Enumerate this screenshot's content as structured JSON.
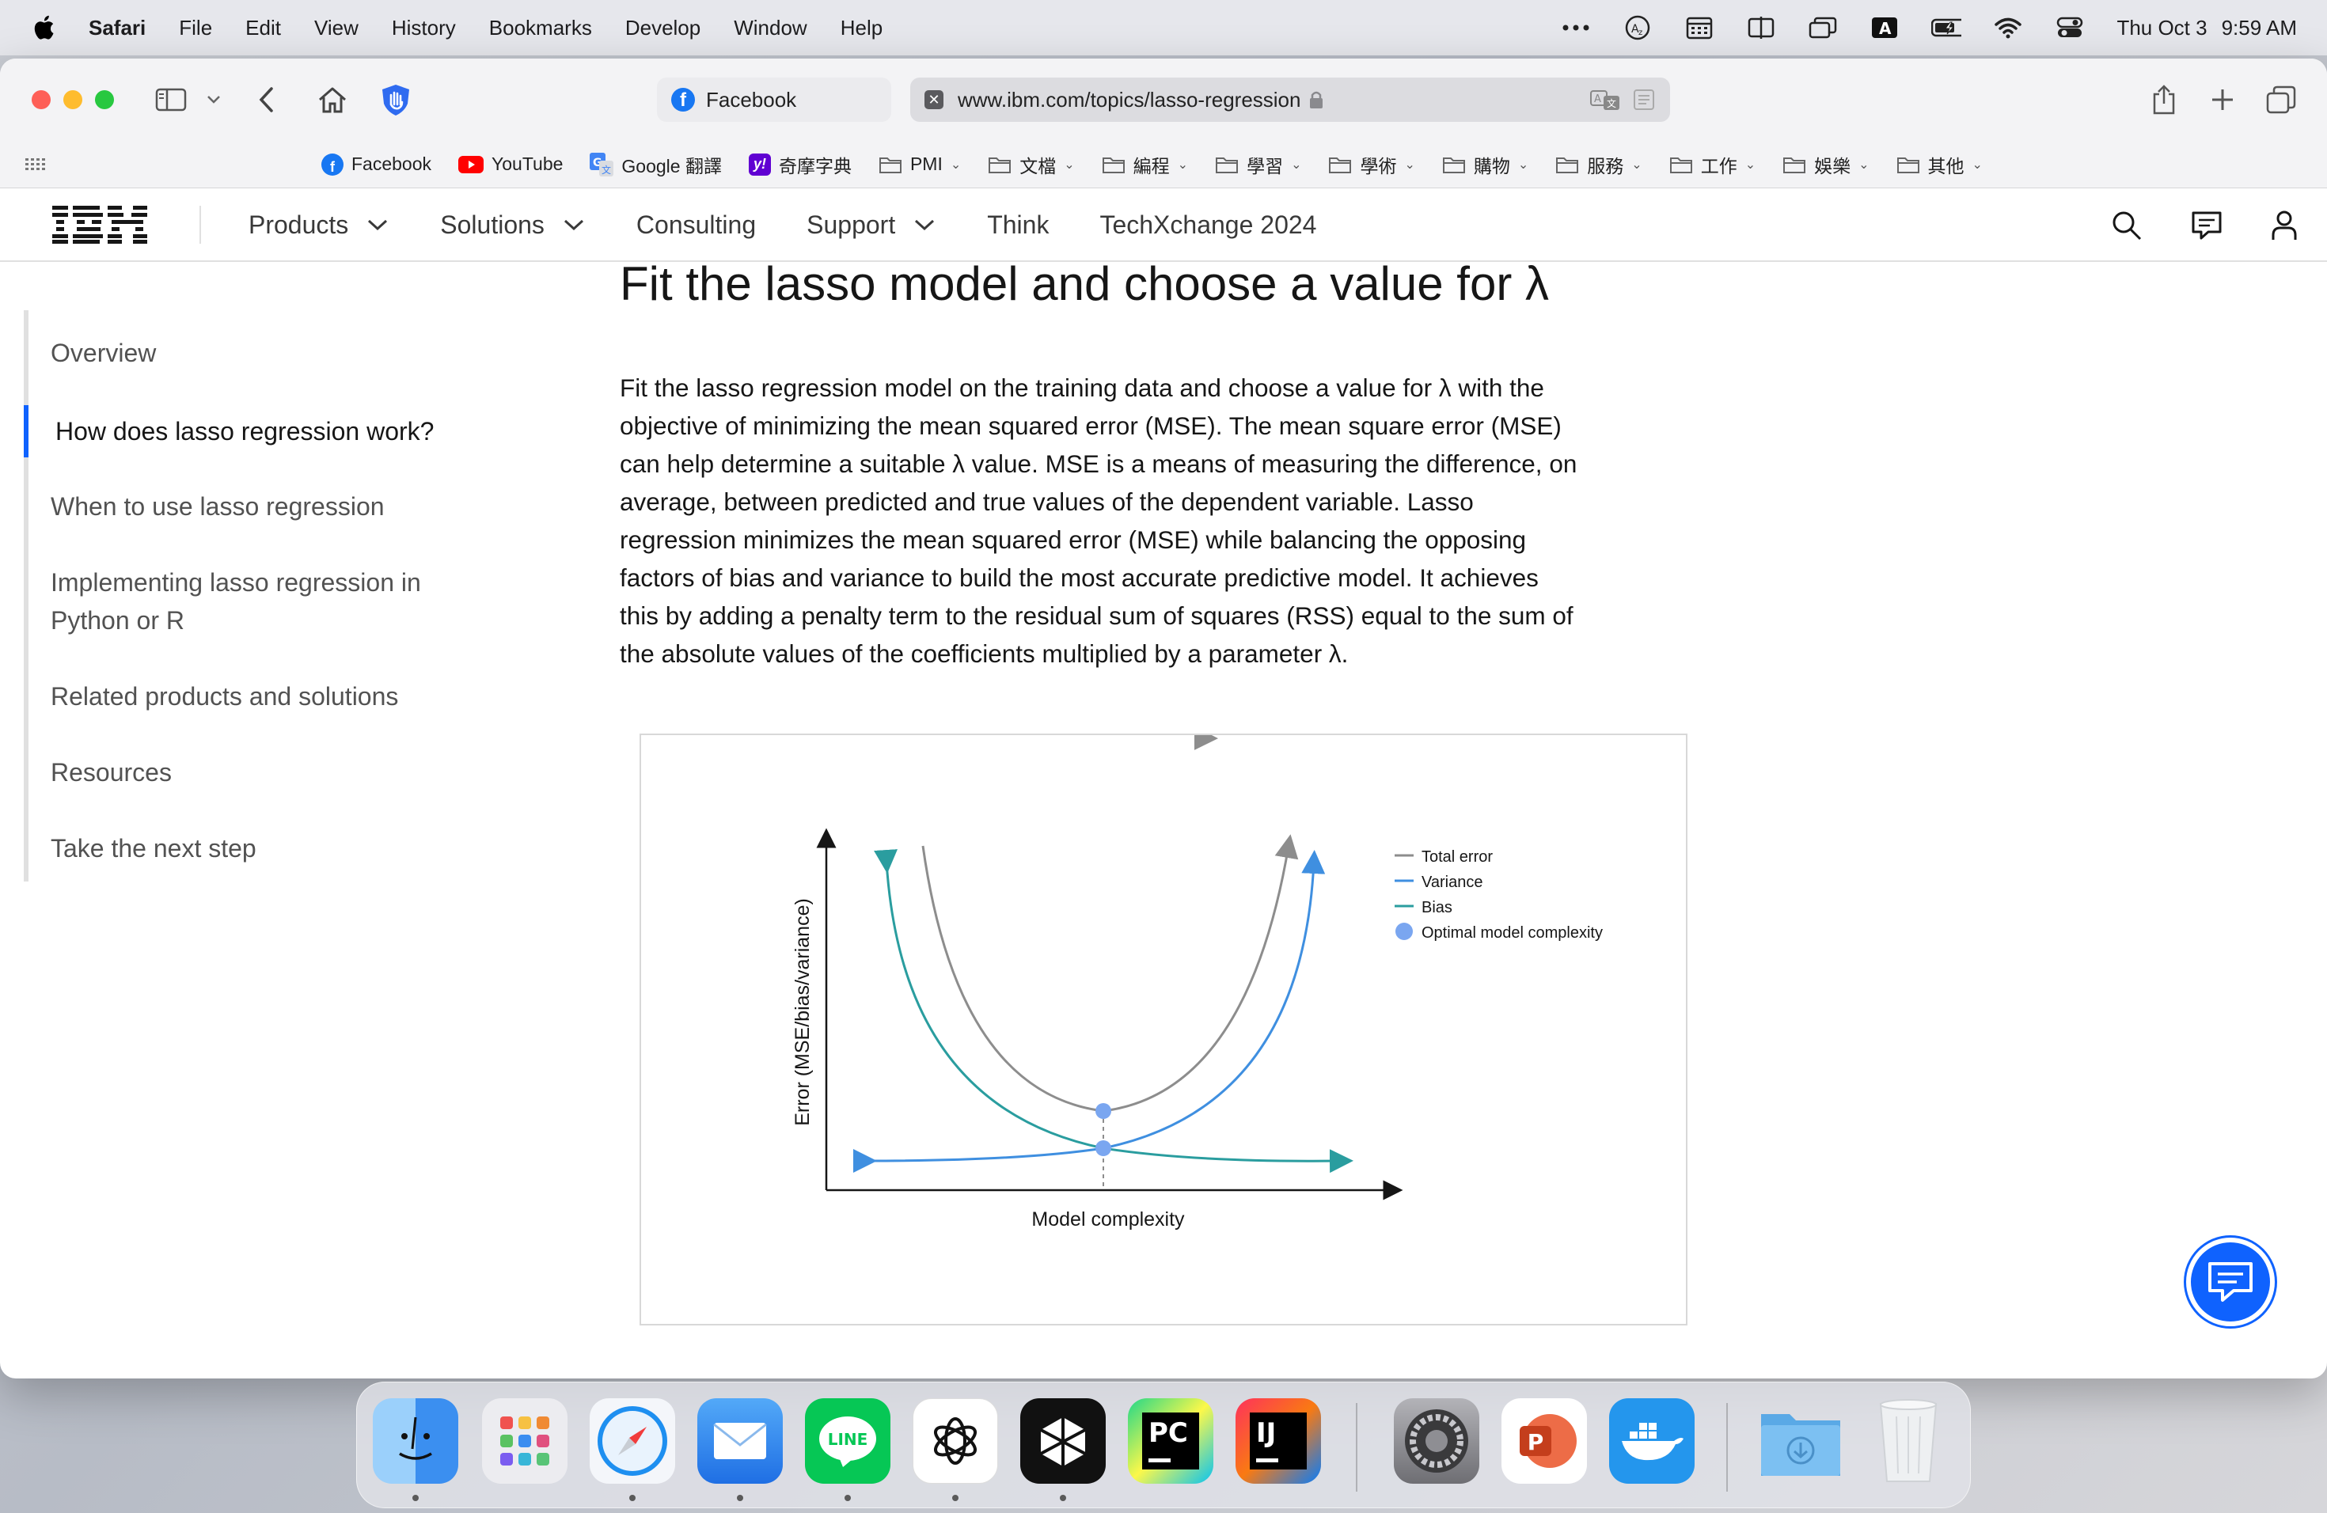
{
  "menubar": {
    "app_name": "Safari",
    "menus": [
      "File",
      "Edit",
      "View",
      "History",
      "Bookmarks",
      "Develop",
      "Window",
      "Help"
    ],
    "date": "Thu Oct 3",
    "time": "9:59 AM"
  },
  "browser": {
    "tabs": [
      {
        "label": "Facebook",
        "icon": "facebook-icon"
      },
      {
        "label": "www.ibm.com/topics/lasso-regression",
        "icon": "close-tab-icon",
        "lock": "lock-icon"
      }
    ],
    "bookmarks": [
      {
        "label": "Facebook",
        "icon": "facebook-icon",
        "color": "#1877f2"
      },
      {
        "label": "YouTube",
        "icon": "youtube-icon",
        "color": "#ff0000"
      },
      {
        "label": "Google 翻譯",
        "icon": "google-translate-icon",
        "color": "#4285f4"
      },
      {
        "label": "奇摩字典",
        "icon": "yahoo-icon",
        "color": "#6001d2"
      },
      {
        "label": "PMI",
        "folder": true
      },
      {
        "label": "文檔",
        "folder": true
      },
      {
        "label": "編程",
        "folder": true
      },
      {
        "label": "學習",
        "folder": true
      },
      {
        "label": "學術",
        "folder": true
      },
      {
        "label": "購物",
        "folder": true
      },
      {
        "label": "服務",
        "folder": true
      },
      {
        "label": "工作",
        "folder": true
      },
      {
        "label": "娛樂",
        "folder": true
      },
      {
        "label": "其他",
        "folder": true
      }
    ]
  },
  "ibm_nav": {
    "logo": "IBM",
    "items": [
      {
        "label": "Products",
        "dropdown": true
      },
      {
        "label": "Solutions",
        "dropdown": true
      },
      {
        "label": "Consulting",
        "dropdown": false
      },
      {
        "label": "Support",
        "dropdown": true
      },
      {
        "label": "Think",
        "dropdown": false
      },
      {
        "label": "TechXchange 2024",
        "dropdown": false
      }
    ]
  },
  "toc": {
    "items": [
      {
        "label": "Overview",
        "active": false
      },
      {
        "label": "How does lasso regression work?",
        "active": true
      },
      {
        "label": "When to use lasso regression",
        "active": false
      },
      {
        "label": "Implementing lasso regression in",
        "label2": "Python or R",
        "active": false
      },
      {
        "label": "Related products and solutions",
        "active": false
      },
      {
        "label": "Resources",
        "active": false
      },
      {
        "label": "Take the next step",
        "active": false
      }
    ]
  },
  "article": {
    "title": "Fit the lasso model and choose a value for λ",
    "lines": [
      "Fit the lasso regression model on the training data and choose a value for λ with the",
      "objective of minimizing the mean squared error (MSE). The mean square error (MSE)",
      "can help determine a suitable λ value. MSE is a means of measuring the difference, on",
      "average, between predicted and true values of the dependent variable. Lasso",
      "regression minimizes the mean squared error (MSE) while balancing the opposing",
      "factors of bias and variance to build the most accurate predictive model. It achieves",
      "this by adding a penalty term to the residual sum of squares (RSS) equal to the sum of",
      "the absolute values of the coefficients multiplied by a parameter λ."
    ]
  },
  "figure": {
    "xlabel": "Model complexity",
    "ylabel": "Error (MSE/bias/variance)",
    "legend": [
      {
        "label": "Total error",
        "color": "#8d8d8d",
        "kind": "line"
      },
      {
        "label": "Variance",
        "color": "#3f8fe0",
        "kind": "line"
      },
      {
        "label": "Bias",
        "color": "#2a9d9f",
        "kind": "line"
      },
      {
        "label": "Optimal model complexity",
        "color": "#7aa6f0",
        "kind": "dot"
      }
    ],
    "colors": {
      "total": "#8d8d8d",
      "variance": "#3f8fe0",
      "bias": "#2a9d9f",
      "optimal": "#7aa6f0"
    }
  },
  "dock": {
    "apps": [
      {
        "name": "finder-icon",
        "color": "#3f9af5",
        "running": true
      },
      {
        "name": "launchpad-icon",
        "color": "#e8e8ec",
        "running": false
      },
      {
        "name": "safari-icon",
        "color": "#e9eef6",
        "running": true
      },
      {
        "name": "mail-icon",
        "color": "#3b8cf0",
        "running": true
      },
      {
        "name": "line-icon",
        "color": "#06c755",
        "label": "LINE",
        "running": true
      },
      {
        "name": "chatgpt-icon",
        "color": "#ffffff",
        "running": true
      },
      {
        "name": "perplexity-icon",
        "color": "#111111",
        "running": true
      },
      {
        "name": "pycharm-icon",
        "color": "#21d789",
        "label": "PC",
        "running": false
      },
      {
        "name": "intellij-icon",
        "color": "#fe315d",
        "label": "IJ",
        "running": false
      },
      {
        "name": "system-settings-icon",
        "color": "#8e8e93",
        "running": false
      },
      {
        "name": "powerpoint-icon",
        "color": "#ffffff",
        "label": "P",
        "running": false
      },
      {
        "name": "docker-icon",
        "color": "#2496ed",
        "running": false
      },
      {
        "name": "downloads-folder-icon",
        "color": "#7cc0f2",
        "running": false
      },
      {
        "name": "trash-icon",
        "color": "#eef0f2",
        "running": false
      }
    ]
  }
}
